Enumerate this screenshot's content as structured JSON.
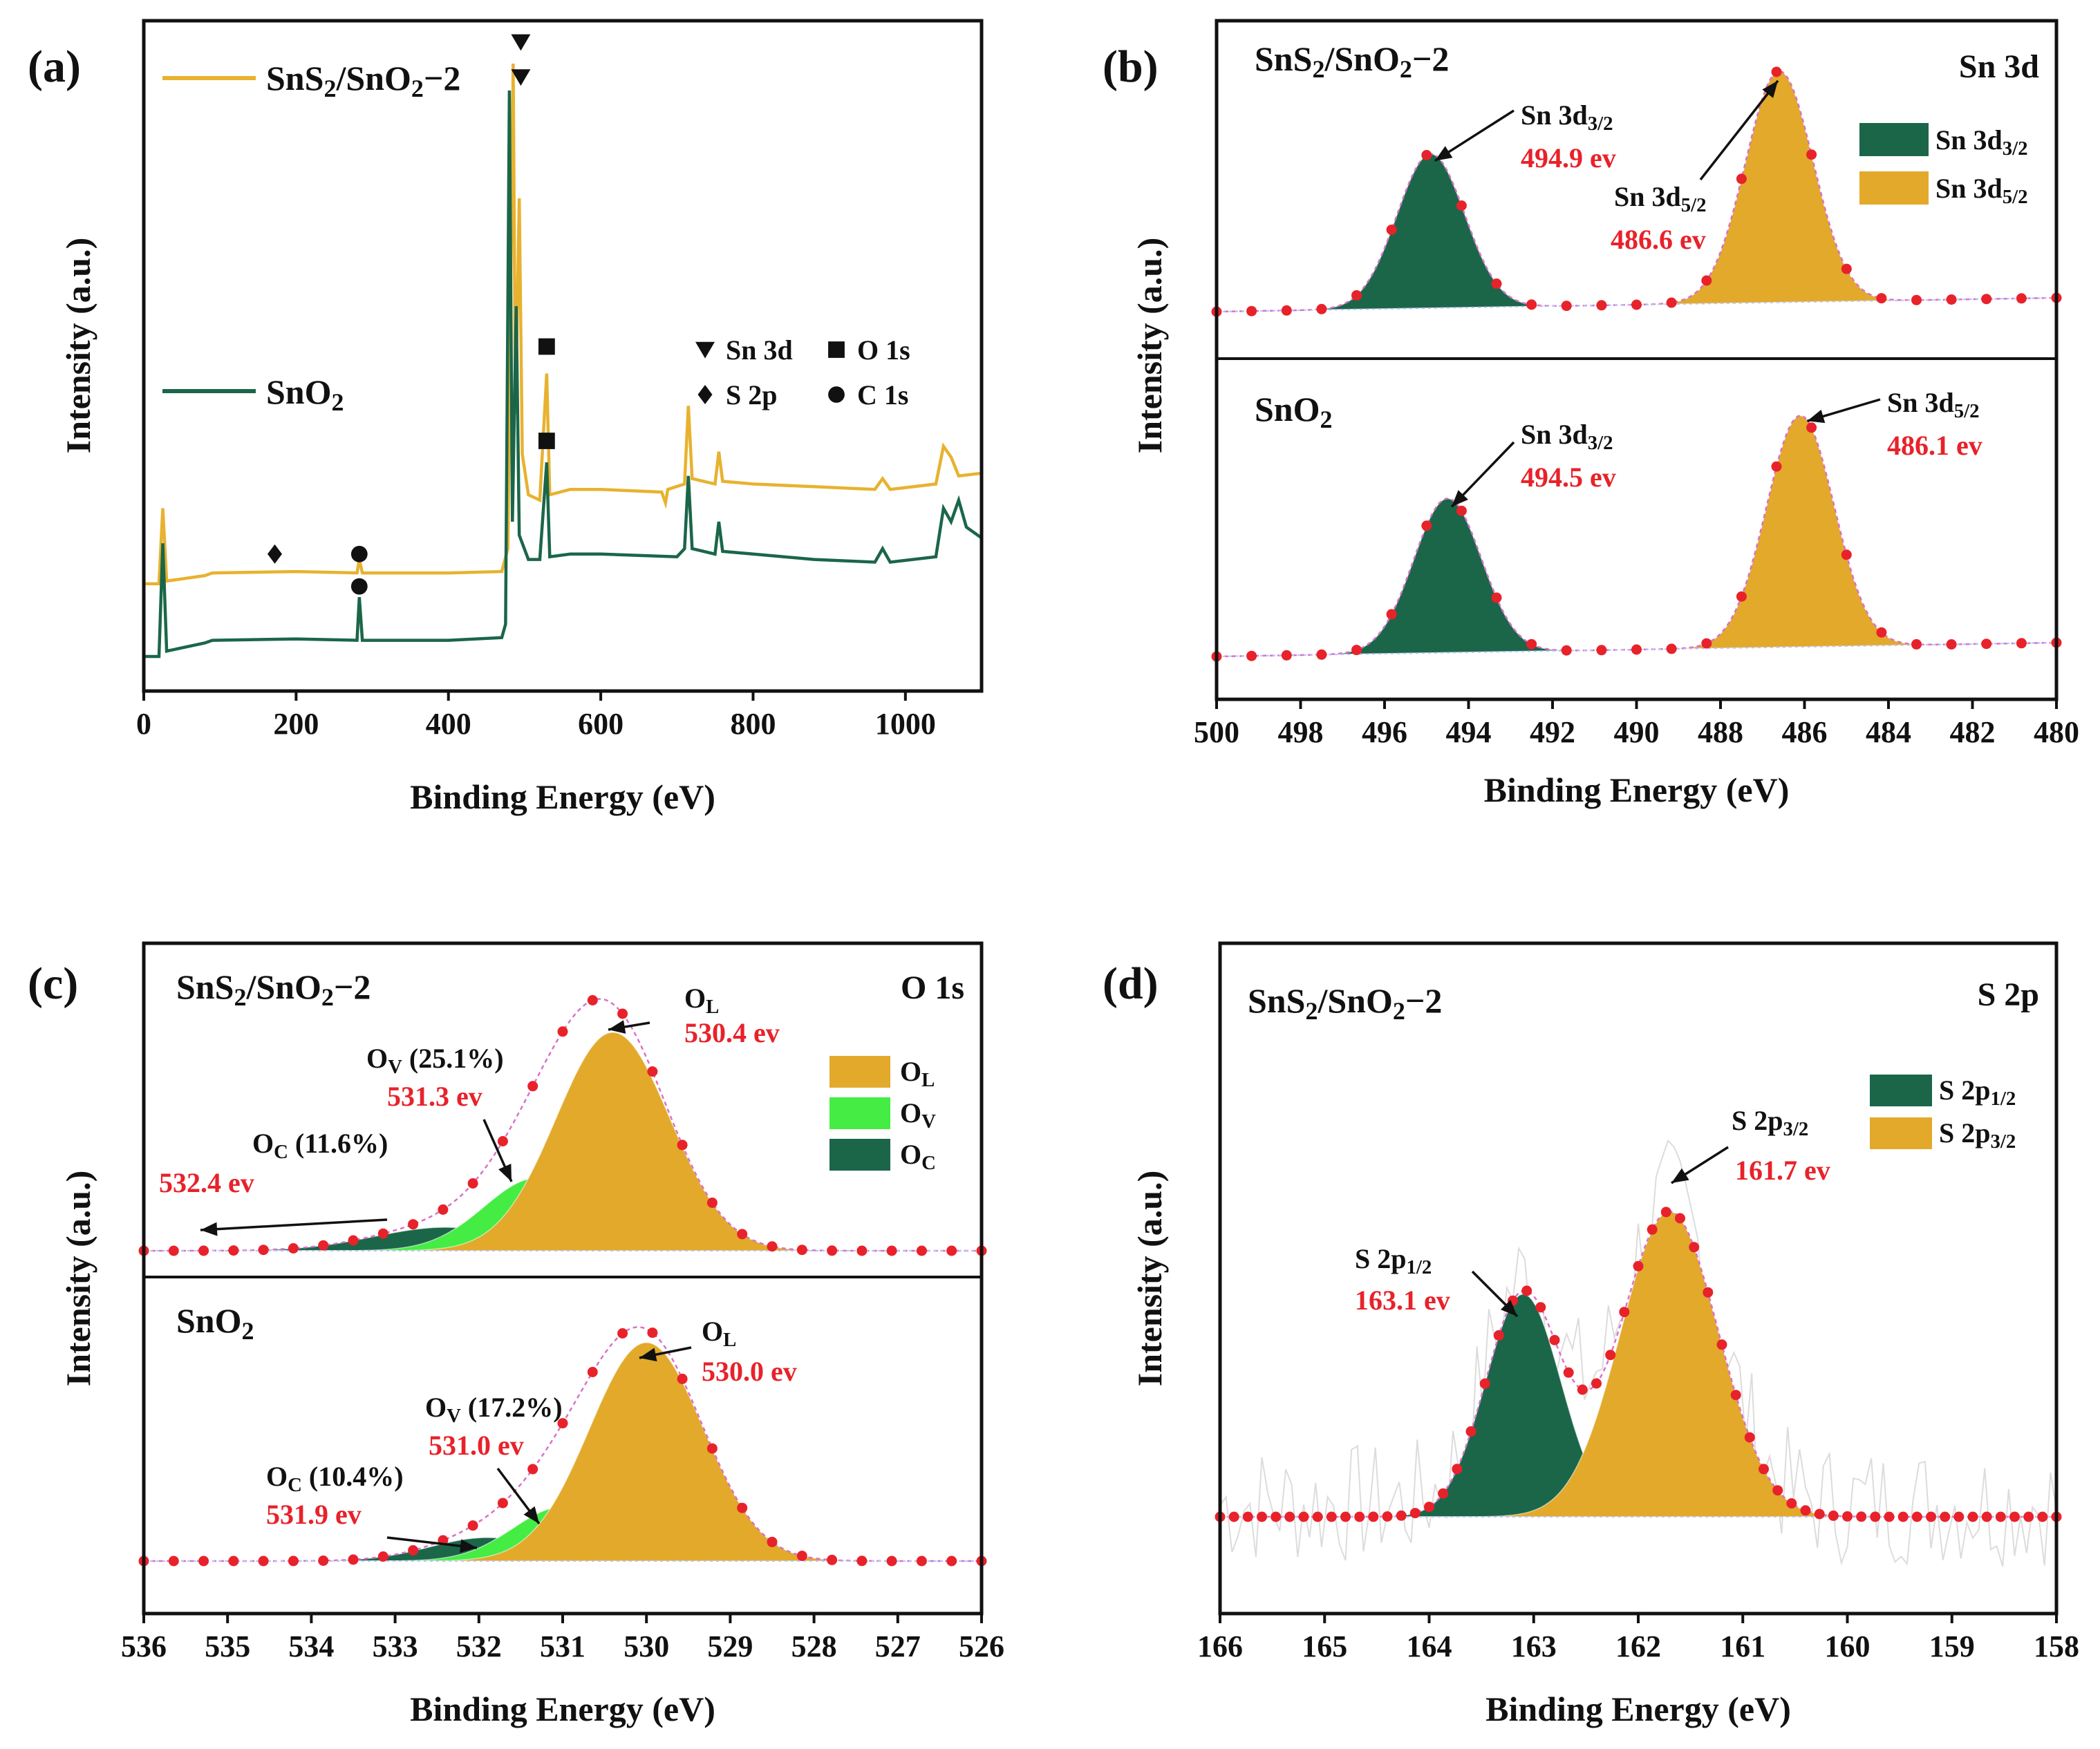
{
  "colors": {
    "sns2": "#e8b230",
    "sno2": "#1b6649",
    "green_dark": "#1b6649",
    "gold": "#e2a92b",
    "bright_green": "#44ec44",
    "red": "#e8222a",
    "magenta": "#d873c8"
  },
  "chart_data": [
    {
      "panel": "(a)",
      "type": "line",
      "xlabel": "Binding Energy (eV)",
      "ylabel": "Intensity (a.u.)",
      "xlim": [
        0,
        1100
      ],
      "xticks": [
        "0",
        "200",
        "400",
        "600",
        "800",
        "1000"
      ],
      "series": [
        {
          "name": "SnS2/SnO2−2",
          "label_main": "SnS",
          "label_sub1": "2",
          "label_mid": "/SnO",
          "label_sub2": "2",
          "label_tail": "−2",
          "baseline": 0.27,
          "points": [
            [
              0,
              0.27
            ],
            [
              20,
              0.27
            ],
            [
              25,
              0.55
            ],
            [
              30,
              0.28
            ],
            [
              80,
              0.3
            ],
            [
              90,
              0.31
            ],
            [
              200,
              0.315
            ],
            [
              280,
              0.31
            ],
            [
              283,
              0.36
            ],
            [
              287,
              0.31
            ],
            [
              400,
              0.31
            ],
            [
              470,
              0.315
            ],
            [
              478,
              0.4
            ],
            [
              485,
              2.2
            ],
            [
              488,
              0.9
            ],
            [
              493,
              1.7
            ],
            [
              497,
              0.75
            ],
            [
              505,
              0.6
            ],
            [
              520,
              0.58
            ],
            [
              529,
              1.05
            ],
            [
              533,
              0.6
            ],
            [
              560,
              0.62
            ],
            [
              600,
              0.62
            ],
            [
              680,
              0.61
            ],
            [
              685,
              0.57
            ],
            [
              688,
              0.62
            ],
            [
              710,
              0.64
            ],
            [
              715,
              0.93
            ],
            [
              720,
              0.66
            ],
            [
              750,
              0.64
            ],
            [
              755,
              0.76
            ],
            [
              760,
              0.65
            ],
            [
              800,
              0.64
            ],
            [
              880,
              0.63
            ],
            [
              960,
              0.62
            ],
            [
              970,
              0.66
            ],
            [
              980,
              0.62
            ],
            [
              1040,
              0.64
            ],
            [
              1050,
              0.78
            ],
            [
              1060,
              0.74
            ],
            [
              1070,
              0.67
            ],
            [
              1100,
              0.68
            ]
          ]
        },
        {
          "name": "SnO2",
          "label_main": "SnO",
          "label_sub1": "2",
          "baseline": 0.0,
          "points": [
            [
              0,
              0.0
            ],
            [
              20,
              0.0
            ],
            [
              25,
              0.42
            ],
            [
              30,
              0.02
            ],
            [
              80,
              0.05
            ],
            [
              90,
              0.06
            ],
            [
              200,
              0.065
            ],
            [
              280,
              0.06
            ],
            [
              283,
              0.22
            ],
            [
              287,
              0.06
            ],
            [
              400,
              0.06
            ],
            [
              470,
              0.07
            ],
            [
              475,
              0.12
            ],
            [
              480,
              2.1
            ],
            [
              484,
              0.5
            ],
            [
              489,
              1.3
            ],
            [
              493,
              0.45
            ],
            [
              505,
              0.36
            ],
            [
              520,
              0.36
            ],
            [
              529,
              0.72
            ],
            [
              533,
              0.37
            ],
            [
              560,
              0.38
            ],
            [
              600,
              0.38
            ],
            [
              700,
              0.37
            ],
            [
              710,
              0.4
            ],
            [
              715,
              0.67
            ],
            [
              720,
              0.4
            ],
            [
              750,
              0.38
            ],
            [
              755,
              0.5
            ],
            [
              760,
              0.39
            ],
            [
              800,
              0.38
            ],
            [
              880,
              0.36
            ],
            [
              960,
              0.35
            ],
            [
              970,
              0.4
            ],
            [
              980,
              0.35
            ],
            [
              1040,
              0.37
            ],
            [
              1050,
              0.55
            ],
            [
              1060,
              0.5
            ],
            [
              1070,
              0.58
            ],
            [
              1080,
              0.48
            ],
            [
              1100,
              0.44
            ]
          ]
        }
      ],
      "markers": {
        "sns2": [
          {
            "symbol": "triangle",
            "x": 495,
            "level": 2.28
          },
          {
            "symbol": "square",
            "x": 529,
            "level": 1.15
          },
          {
            "symbol": "diamond",
            "x": 172,
            "level": 0.38
          },
          {
            "symbol": "circle",
            "x": 283,
            "level": 0.38
          }
        ],
        "sno2": [
          {
            "symbol": "triangle",
            "x": 495,
            "level": 2.15
          },
          {
            "symbol": "square",
            "x": 529,
            "level": 0.8
          },
          {
            "symbol": "circle",
            "x": 283,
            "level": 0.26
          }
        ]
      },
      "legend": [
        {
          "symbol": "triangle",
          "label": "Sn 3d"
        },
        {
          "symbol": "square",
          "label": "O 1s"
        },
        {
          "symbol": "diamond",
          "label": "S 2p"
        },
        {
          "symbol": "circle",
          "label": "C 1s"
        }
      ]
    },
    {
      "panel": "(b)",
      "type": "area",
      "core_level": "Sn 3d",
      "xlabel": "Binding Energy (eV)",
      "ylabel": "Intensity (a.u.)",
      "xlim": [
        500,
        480
      ],
      "xticks": [
        "500",
        "498",
        "496",
        "494",
        "492",
        "490",
        "488",
        "486",
        "484",
        "482",
        "480"
      ],
      "legend": [
        {
          "main": "Sn 3d",
          "sub": "3/2",
          "color": "#1b6649"
        },
        {
          "main": "Sn 3d",
          "sub": "5/2",
          "color": "#e2a92b"
        }
      ],
      "subplots": [
        {
          "sample": "SnS2/SnO2−2",
          "s_main": "SnS",
          "s_sub1": "2",
          "s_mid": "/SnO",
          "s_sub2": "2",
          "s_tail": "−2",
          "peaks": [
            {
              "name": "Sn 3d3/2",
              "main": "Sn 3d",
              "sub": "3/2",
              "center": 494.9,
              "amp": 0.62,
              "fwhm": 1.9,
              "color": "#1b6649",
              "value": "494.9 ev"
            },
            {
              "name": "Sn 3d5/2",
              "main": "Sn 3d",
              "sub": "5/2",
              "center": 486.6,
              "amp": 0.93,
              "fwhm": 1.9,
              "color": "#e2a92b",
              "value": "486.6 ev"
            }
          ]
        },
        {
          "sample": "SnO2",
          "s_main": "SnO",
          "s_sub1": "2",
          "peaks": [
            {
              "name": "Sn 3d3/2",
              "main": "Sn 3d",
              "sub": "3/2",
              "center": 494.5,
              "amp": 0.62,
              "fwhm": 1.9,
              "color": "#1b6649",
              "value": "494.5 ev"
            },
            {
              "name": "Sn 3d5/2",
              "main": "Sn 3d",
              "sub": "5/2",
              "center": 486.1,
              "amp": 0.93,
              "fwhm": 1.9,
              "color": "#e2a92b",
              "value": "486.1 ev"
            }
          ]
        }
      ]
    },
    {
      "panel": "(c)",
      "type": "area",
      "core_level": "O 1s",
      "xlabel": "Binding Energy (eV)",
      "ylabel": "Intensity (a.u.)",
      "xlim": [
        536,
        526
      ],
      "xticks": [
        "536",
        "535",
        "534",
        "533",
        "532",
        "531",
        "530",
        "529",
        "528",
        "527",
        "526"
      ],
      "legend": [
        {
          "main": "O",
          "sub": "L",
          "color": "#e2a92b"
        },
        {
          "main": "O",
          "sub": "V",
          "color": "#44ec44"
        },
        {
          "main": "O",
          "sub": "C",
          "color": "#1b6649"
        }
      ],
      "subplots": [
        {
          "sample": "SnS2/SnO2−2",
          "s_main": "SnS",
          "s_sub1": "2",
          "s_mid": "/SnO",
          "s_sub2": "2",
          "s_tail": "−2",
          "peaks": [
            {
              "name": "OC",
              "main": "O",
              "sub": "C",
              "pct": "(11.6%)",
              "center": 532.4,
              "amp": 0.1,
              "fwhm": 2.0,
              "color": "#1b6649",
              "value": "532.4 ev"
            },
            {
              "name": "OV",
              "main": "O",
              "sub": "V",
              "pct": "(25.1%)",
              "center": 531.3,
              "amp": 0.31,
              "fwhm": 1.5,
              "color": "#44ec44",
              "value": "531.3 ev"
            },
            {
              "name": "OL",
              "main": "O",
              "sub": "L",
              "pct": "",
              "center": 530.4,
              "amp": 0.93,
              "fwhm": 1.6,
              "color": "#e2a92b",
              "value": "530.4 ev"
            }
          ]
        },
        {
          "sample": "SnO2",
          "s_main": "SnO",
          "s_sub1": "2",
          "peaks": [
            {
              "name": "OC",
              "main": "O",
              "sub": "C",
              "pct": "(10.4%)",
              "center": 531.9,
              "amp": 0.1,
              "fwhm": 1.6,
              "color": "#1b6649",
              "value": "531.9 ev"
            },
            {
              "name": "OV",
              "main": "O",
              "sub": "V",
              "pct": "(17.2%)",
              "center": 531.0,
              "amp": 0.23,
              "fwhm": 1.4,
              "color": "#44ec44",
              "value": "531.0 ev"
            },
            {
              "name": "OL",
              "main": "O",
              "sub": "L",
              "pct": "",
              "center": 530.0,
              "amp": 0.93,
              "fwhm": 1.6,
              "color": "#e2a92b",
              "value": "530.0 ev"
            }
          ]
        }
      ]
    },
    {
      "panel": "(d)",
      "type": "area",
      "core_level": "S 2p",
      "sample": "SnS2/SnO2−2",
      "s_main": "SnS",
      "s_sub1": "2",
      "s_mid": "/SnO",
      "s_sub2": "2",
      "s_tail": "−2",
      "xlabel": "Binding Energy (eV)",
      "ylabel": "Intensity (a.u.)",
      "xlim": [
        166,
        158
      ],
      "xticks": [
        "166",
        "165",
        "164",
        "163",
        "162",
        "161",
        "160",
        "159",
        "158"
      ],
      "legend": [
        {
          "main": "S 2p",
          "sub": "1/2",
          "color": "#1b6649"
        },
        {
          "main": "S 2p",
          "sub": "3/2",
          "color": "#e2a92b"
        }
      ],
      "peaks": [
        {
          "name": "S 2p1/2",
          "main": "S 2p",
          "sub": "1/2",
          "center": 163.1,
          "amp": 0.62,
          "fwhm": 0.85,
          "color": "#1b6649",
          "value": "163.1 ev"
        },
        {
          "name": "S 2p3/2",
          "main": "S 2p",
          "sub": "3/2",
          "center": 161.7,
          "amp": 0.85,
          "fwhm": 1.1,
          "color": "#e2a92b",
          "value": "161.7 ev"
        }
      ]
    }
  ]
}
